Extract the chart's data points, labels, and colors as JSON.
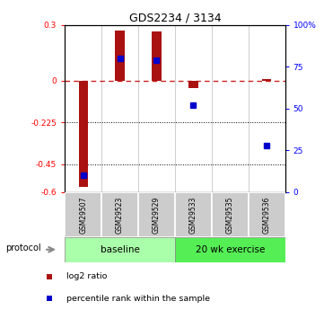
{
  "title": "GDS2234 / 3134",
  "samples": [
    "GSM29507",
    "GSM29523",
    "GSM29529",
    "GSM29533",
    "GSM29535",
    "GSM29536"
  ],
  "log2_ratio": [
    -0.57,
    0.27,
    0.265,
    -0.038,
    0.0,
    0.008
  ],
  "percentile_rank": [
    10,
    80,
    79,
    52,
    null,
    28
  ],
  "ylim_left": [
    -0.6,
    0.3
  ],
  "ylim_right": [
    0,
    100
  ],
  "yticks_left": [
    0.3,
    0.0,
    -0.225,
    -0.45,
    -0.6
  ],
  "yticks_right": [
    100,
    75,
    50,
    25,
    0
  ],
  "ytick_labels_left": [
    "0.3",
    "0",
    "-0.225",
    "-0.45",
    "-0.6"
  ],
  "ytick_labels_right": [
    "100%",
    "75",
    "50",
    "25",
    "0"
  ],
  "hlines": [
    -0.45,
    -0.225
  ],
  "bar_color": "#aa1111",
  "dot_color": "#0000cc",
  "dashed_line_color": "#cc2222",
  "baseline_label": "baseline",
  "exercise_label": "20 wk exercise",
  "protocol_label": "protocol",
  "legend_log2": "log2 ratio",
  "legend_pct": "percentile rank within the sample",
  "baseline_color": "#aaffaa",
  "exercise_color": "#55ee55",
  "sample_box_color": "#cccccc",
  "bar_width": 0.25
}
